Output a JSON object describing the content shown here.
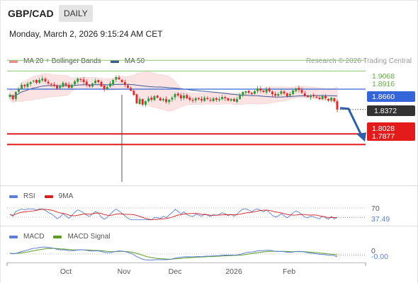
{
  "header": {
    "symbol": "GBP/CAD",
    "timeframe": "DAILY",
    "datetime": "Monday, March 2, 2026 9:15:24 AM CET",
    "research": "Research © 2026 Trading Central"
  },
  "legend": {
    "ma20_bb": "MA 20 + Bollinger Bands",
    "ma50": "MA 50",
    "rsi": "RSI",
    "rsi_ma": "9MA",
    "macd": "MACD",
    "macd_signal": "MACD Signal"
  },
  "colors": {
    "up": "#2e9a3c",
    "down": "#e0292b",
    "bollinger_fill": "#fbe3e3",
    "ma50": "#3a5a9a",
    "resistance_green": "#8cc46f",
    "pivot_blue": "#3465d9",
    "support_red": "#e31b1b",
    "current_price_bg": "#333333",
    "rsi_line": "#5b7fd9",
    "rsi_ma_line": "#d62020",
    "macd_line": "#5b7fd9",
    "macd_signal_line": "#5aa01e"
  },
  "chart_data": {
    "type": "candlestick",
    "timeframe": "daily",
    "x_tick_labels": [
      "Oct",
      "Nov",
      "Dec",
      "2026",
      "Feb"
    ],
    "price_axis": {
      "ylim": [
        1.74,
        1.92
      ]
    },
    "levels": {
      "resistance_2": 1.9068,
      "resistance_1": 1.8916,
      "pivot": 1.866,
      "current_price": 1.8372,
      "support_1": 1.8028,
      "support_2": 1.7877
    },
    "level_labels": {
      "resistance_2": "1.9068",
      "resistance_1": "1.8916",
      "pivot": "1.8660",
      "current_price": "1.8372",
      "support_1": "1.8028",
      "support_2": "1.7877"
    },
    "price_closes": [
      1.858,
      1.852,
      1.862,
      1.866,
      1.872,
      1.87,
      1.874,
      1.876,
      1.878,
      1.875,
      1.879,
      1.881,
      1.877,
      1.874,
      1.873,
      1.871,
      1.867,
      1.87,
      1.875,
      1.872,
      1.868,
      1.872,
      1.877,
      1.881,
      1.879,
      1.876,
      1.872,
      1.87,
      1.874,
      1.878,
      1.876,
      1.87,
      1.866,
      1.869,
      1.874,
      1.879,
      1.883,
      1.88,
      1.876,
      1.872,
      1.868,
      1.864,
      1.858,
      1.846,
      1.852,
      1.844,
      1.849,
      1.853,
      1.851,
      1.856,
      1.854,
      1.85,
      1.852,
      1.848,
      1.851,
      1.854,
      1.859,
      1.857,
      1.853,
      1.857,
      1.853,
      1.851,
      1.85,
      1.853,
      1.852,
      1.85,
      1.854,
      1.852,
      1.85,
      1.853,
      1.851,
      1.852,
      1.855,
      1.853,
      1.85,
      1.852,
      1.849,
      1.852,
      1.857,
      1.862,
      1.863,
      1.861,
      1.859,
      1.863,
      1.867,
      1.864,
      1.862,
      1.866,
      1.863,
      1.859,
      1.857,
      1.859,
      1.863,
      1.86,
      1.856,
      1.859,
      1.864,
      1.867,
      1.865,
      1.861,
      1.857,
      1.855,
      1.857,
      1.856,
      1.854,
      1.852,
      1.856,
      1.853,
      1.85,
      1.854,
      1.849,
      1.8372
    ],
    "rsi": {
      "labels": [
        "70",
        "37.49"
      ],
      "current": 37.49
    },
    "macd": {
      "labels": [
        "0",
        "-0.00"
      ],
      "current": -0.0
    },
    "forecast": "arrow down toward 1.8028"
  }
}
